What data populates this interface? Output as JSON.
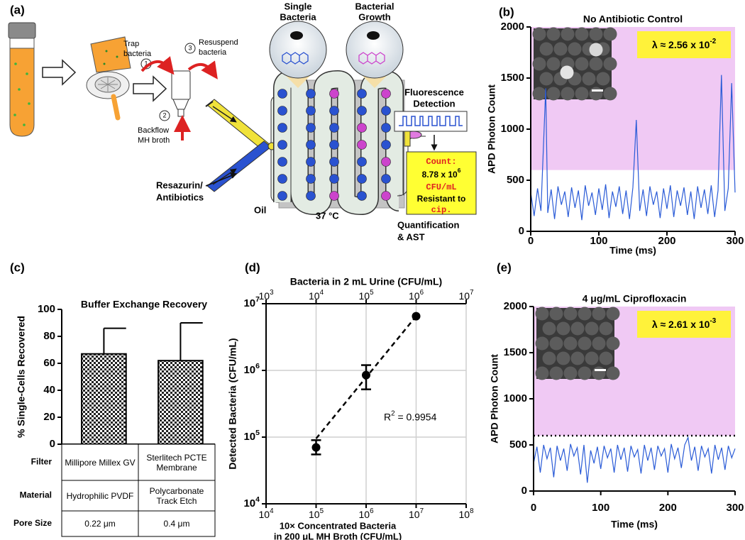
{
  "diagram": {
    "panel": "(a)",
    "trap": [
      "Trap",
      "bacteria"
    ],
    "steps": [
      "1",
      "2",
      "3"
    ],
    "resuspend": [
      "Resuspend",
      "bacteria"
    ],
    "backflow": [
      "Backflow",
      "MH broth"
    ],
    "single": [
      "Single",
      "Bacteria"
    ],
    "growth": [
      "Bacterial",
      "Growth"
    ],
    "detection": [
      "Fluorescence",
      "Detection"
    ],
    "reagents": [
      "Resazurin/",
      "Antibiotics"
    ],
    "oil": "Oil",
    "temperature": "37 °C",
    "result": [
      "Count:",
      "8.78 x 10^6",
      "CFU/mL",
      "Resistant to",
      "cip."
    ],
    "output": [
      "Quantification",
      "& AST"
    ]
  },
  "chart_data": [
    {
      "panel": "(b)",
      "type": "line",
      "title": "No Antibiotic Control",
      "xlabel": "Time (ms)",
      "ylabel": "APD Photon Count",
      "annotation": "λ ≈ 2.56 x 10^-2",
      "x": [
        0,
        5,
        10,
        15,
        22,
        25,
        30,
        35,
        40,
        45,
        50,
        55,
        60,
        65,
        70,
        75,
        80,
        85,
        90,
        95,
        100,
        105,
        110,
        115,
        120,
        125,
        130,
        135,
        140,
        145,
        150,
        155,
        160,
        165,
        170,
        175,
        180,
        185,
        190,
        195,
        200,
        205,
        210,
        215,
        220,
        225,
        230,
        235,
        240,
        245,
        250,
        255,
        260,
        265,
        270,
        275,
        280,
        285,
        290,
        295,
        300
      ],
      "values": [
        380,
        150,
        420,
        200,
        1400,
        180,
        410,
        120,
        440,
        260,
        390,
        140,
        430,
        230,
        400,
        110,
        450,
        250,
        380,
        160,
        420,
        210,
        460,
        130,
        390,
        240,
        440,
        170,
        400,
        120,
        430,
        1090,
        200,
        410,
        150,
        440,
        260,
        390,
        130,
        420,
        220,
        450,
        140,
        400,
        250,
        430,
        160,
        390,
        120,
        440,
        230,
        410,
        170,
        450,
        140,
        400,
        1530,
        200,
        420,
        1450,
        380
      ],
      "color": "#2a5bd7",
      "xlim": [
        0,
        300
      ],
      "xticks": [
        0,
        100,
        200,
        300
      ],
      "ylim": [
        0,
        2000
      ],
      "yticks": [
        0,
        500,
        1000,
        1500,
        2000
      ],
      "threshold": 600,
      "threshold_color": "#f0c9f4",
      "threshold_line": false
    },
    {
      "panel": "(c)",
      "type": "bar",
      "title": "Buffer Exchange Recovery",
      "ylabel": "% Single-Cells  Recovered",
      "values": [
        67,
        62
      ],
      "errors": [
        19,
        28
      ],
      "color": "#000000",
      "ylim": [
        0,
        100
      ],
      "yticks": [
        0,
        20,
        40,
        60,
        80,
        100
      ],
      "table": {
        "rows": [
          [
            "Filter",
            "Millipore Millex GV",
            "Sterlitech PCTE Membrane"
          ],
          [
            "Material",
            "Hydrophilic PVDF",
            "Polycarbonate Track Etch"
          ],
          [
            "Pore Size",
            "0.22 μm",
            "0.4 μm"
          ]
        ]
      }
    },
    {
      "panel": "(d)",
      "type": "scatter",
      "xlabel": [
        "10× Concentrated Bacteria",
        "in 200 μL MH Broth (CFU/mL)"
      ],
      "ylabel": "Detected Bacteria (CFU/mL)",
      "x2label": "Bacteria in 2 mL  Urine (CFU/mL)",
      "annotation": "R^2 = 0.9954",
      "x": [
        100000,
        1000000,
        10000000
      ],
      "values": [
        70000,
        850000,
        6500000
      ],
      "error_minus": [
        15000,
        330000,
        null
      ],
      "error_plus": [
        20000,
        350000,
        null
      ],
      "fit": {
        "x": [
          100000,
          10000000
        ],
        "y": [
          95000,
          6500000
        ]
      },
      "color": "#000000",
      "log_scale": true,
      "grid": true,
      "xlim": [
        10000,
        100000000
      ],
      "xticks": [
        {
          "value": 10000,
          "label": "10^4"
        },
        {
          "value": 100000,
          "label": "10^5"
        },
        {
          "value": 1000000,
          "label": "10^6"
        },
        {
          "value": 10000000,
          "label": "10^7"
        },
        {
          "value": 100000000,
          "label": "10^8"
        }
      ],
      "ylim": [
        10000,
        10000000
      ],
      "yticks": [
        {
          "value": 10000,
          "label": "10^4"
        },
        {
          "value": 100000,
          "label": "10^5"
        },
        {
          "value": 1000000,
          "label": "10^6"
        },
        {
          "value": 10000000,
          "label": "10^7"
        }
      ],
      "x2lim": [
        1000,
        10000000
      ],
      "x2ticks": [
        {
          "value": 1000,
          "label": "10^3"
        },
        {
          "value": 10000,
          "label": "10^4"
        },
        {
          "value": 100000,
          "label": "10^5"
        },
        {
          "value": 1000000,
          "label": "10^6"
        },
        {
          "value": 10000000,
          "label": "10^7"
        }
      ]
    },
    {
      "panel": "(e)",
      "type": "line",
      "title": "4 μg/mL Ciprofloxacin",
      "xlabel": "Time (ms)",
      "ylabel": "APD Photon Count",
      "annotation": "λ ≈ 2.61 x 10^-3",
      "x": [
        0,
        5,
        10,
        15,
        20,
        25,
        30,
        35,
        40,
        45,
        50,
        55,
        60,
        65,
        70,
        75,
        80,
        85,
        90,
        95,
        100,
        105,
        110,
        115,
        120,
        125,
        130,
        135,
        140,
        145,
        150,
        155,
        160,
        165,
        170,
        175,
        180,
        185,
        190,
        195,
        200,
        205,
        210,
        215,
        220,
        225,
        230,
        235,
        240,
        245,
        250,
        255,
        260,
        265,
        270,
        275,
        280,
        285,
        290,
        295,
        300
      ],
      "values": [
        300,
        480,
        200,
        500,
        350,
        470,
        150,
        490,
        330,
        460,
        220,
        510,
        380,
        470,
        180,
        500,
        90,
        440,
        300,
        480,
        240,
        490,
        360,
        460,
        200,
        500,
        340,
        470,
        210,
        490,
        370,
        450,
        190,
        500,
        330,
        470,
        230,
        490,
        380,
        460,
        200,
        510,
        350,
        470,
        250,
        500,
        580,
        330,
        480,
        220,
        490,
        370,
        460,
        190,
        500,
        340,
        470,
        230,
        490,
        360,
        460
      ],
      "color": "#2a5bd7",
      "xlim": [
        0,
        300
      ],
      "xticks": [
        0,
        100,
        200,
        300
      ],
      "ylim": [
        0,
        2000
      ],
      "yticks": [
        0,
        500,
        1000,
        1500,
        2000
      ],
      "threshold": 600,
      "threshold_color": "#f0c9f4",
      "threshold_line": true
    }
  ]
}
